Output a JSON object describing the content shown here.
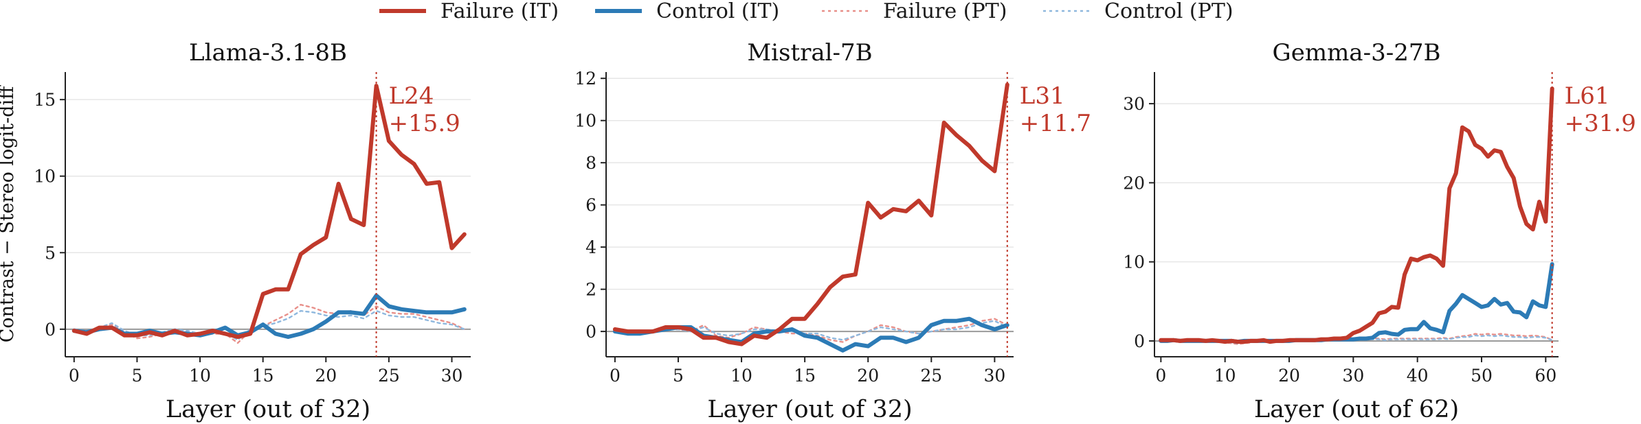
{
  "legend": {
    "items": [
      {
        "label": "Failure (IT)",
        "color": "#c0392b",
        "style": "solid"
      },
      {
        "label": "Control (IT)",
        "color": "#2c7bb6",
        "style": "solid"
      },
      {
        "label": "Failure (PT)",
        "color": "#e8908a",
        "style": "dotted"
      },
      {
        "label": "Control (PT)",
        "color": "#8fb8de",
        "style": "dotted"
      }
    ]
  },
  "colors": {
    "failure_it": "#c0392b",
    "control_it": "#2c7bb6",
    "failure_pt": "#e8908a",
    "control_pt": "#8fb8de",
    "grid": "#e6e6e6",
    "axis": "#222222"
  },
  "chart_data": [
    {
      "type": "line",
      "title": "Llama-3.1-8B",
      "xlabel": "Layer (out of 32)",
      "ylabel": "Contrast − Stereo logit-diff",
      "xlim": [
        -0.7,
        31.5
      ],
      "ylim": [
        -1.8,
        16.8
      ],
      "xticks": [
        0,
        5,
        10,
        15,
        20,
        25,
        30
      ],
      "yticks": [
        0,
        5,
        10,
        15
      ],
      "grid": "horizontal",
      "x": [
        0,
        1,
        2,
        3,
        4,
        5,
        6,
        7,
        8,
        9,
        10,
        11,
        12,
        13,
        14,
        15,
        16,
        17,
        18,
        19,
        20,
        21,
        22,
        23,
        24,
        25,
        26,
        27,
        28,
        29,
        30,
        31
      ],
      "series": [
        {
          "name": "Failure (IT)",
          "values": [
            -0.1,
            -0.3,
            0.1,
            0.1,
            -0.4,
            -0.4,
            -0.2,
            -0.4,
            -0.1,
            -0.4,
            -0.3,
            -0.1,
            -0.3,
            -0.5,
            -0.3,
            2.3,
            2.6,
            2.6,
            4.9,
            5.5,
            6.0,
            9.5,
            7.2,
            6.8,
            15.9,
            12.3,
            11.4,
            10.8,
            9.5,
            9.6,
            5.3,
            6.2
          ]
        },
        {
          "name": "Control (IT)",
          "values": [
            -0.1,
            -0.2,
            0.0,
            0.1,
            -0.3,
            -0.3,
            -0.1,
            -0.3,
            -0.2,
            -0.3,
            -0.4,
            -0.2,
            0.1,
            -0.4,
            -0.2,
            0.3,
            -0.3,
            -0.5,
            -0.3,
            0.0,
            0.5,
            1.1,
            1.1,
            1.0,
            2.2,
            1.5,
            1.3,
            1.2,
            1.1,
            1.1,
            1.1,
            1.3
          ]
        },
        {
          "name": "Failure (PT)",
          "values": [
            0.0,
            -0.2,
            0.1,
            0.3,
            -0.2,
            -0.6,
            -0.5,
            -0.3,
            -0.1,
            -0.2,
            -0.4,
            -0.3,
            -0.3,
            -0.9,
            -0.1,
            0.2,
            0.6,
            1.0,
            1.6,
            1.4,
            1.1,
            1.0,
            1.2,
            0.9,
            1.5,
            1.1,
            1.0,
            1.0,
            0.8,
            0.6,
            0.4,
            0.0
          ]
        },
        {
          "name": "Control (PT)",
          "values": [
            0.0,
            -0.1,
            0.1,
            0.4,
            -0.1,
            -0.4,
            -0.4,
            -0.2,
            0.0,
            -0.1,
            -0.3,
            -0.2,
            -0.2,
            -0.7,
            0.0,
            0.2,
            0.4,
            0.7,
            1.2,
            1.1,
            0.9,
            0.8,
            0.9,
            0.7,
            1.2,
            0.9,
            0.8,
            0.8,
            0.6,
            0.4,
            0.3,
            0.0
          ]
        }
      ],
      "peak": {
        "layer": 24,
        "label": "L24",
        "value_label": "+15.9"
      }
    },
    {
      "type": "line",
      "title": "Mistral-7B",
      "xlabel": "Layer (out of 32)",
      "ylabel": "",
      "xlim": [
        -0.7,
        31.5
      ],
      "ylim": [
        -1.2,
        12.3
      ],
      "xticks": [
        0,
        5,
        10,
        15,
        20,
        25,
        30
      ],
      "yticks": [
        0,
        2,
        4,
        6,
        8,
        10,
        12
      ],
      "grid": "horizontal",
      "x": [
        0,
        1,
        2,
        3,
        4,
        5,
        6,
        7,
        8,
        9,
        10,
        11,
        12,
        13,
        14,
        15,
        16,
        17,
        18,
        19,
        20,
        21,
        22,
        23,
        24,
        25,
        26,
        27,
        28,
        29,
        30,
        31
      ],
      "series": [
        {
          "name": "Failure (IT)",
          "values": [
            0.1,
            0.0,
            0.0,
            0.0,
            0.2,
            0.2,
            0.1,
            -0.3,
            -0.3,
            -0.5,
            -0.6,
            -0.2,
            -0.3,
            0.1,
            0.6,
            0.6,
            1.3,
            2.1,
            2.6,
            2.7,
            6.1,
            5.4,
            5.8,
            5.7,
            6.2,
            5.5,
            9.9,
            9.3,
            8.8,
            8.1,
            7.6,
            11.7
          ]
        },
        {
          "name": "Control (IT)",
          "values": [
            0.0,
            -0.1,
            -0.1,
            0.0,
            0.1,
            0.2,
            0.2,
            -0.2,
            -0.3,
            -0.4,
            -0.5,
            -0.1,
            0.0,
            0.0,
            0.1,
            -0.2,
            -0.3,
            -0.6,
            -0.9,
            -0.6,
            -0.7,
            -0.3,
            -0.3,
            -0.5,
            -0.3,
            0.3,
            0.5,
            0.5,
            0.6,
            0.3,
            0.1,
            0.3
          ]
        },
        {
          "name": "Failure (PT)",
          "values": [
            0.0,
            0.0,
            -0.1,
            0.0,
            0.1,
            0.1,
            0.0,
            0.3,
            -0.2,
            -0.3,
            -0.1,
            0.2,
            0.1,
            0.0,
            -0.1,
            -0.1,
            -0.2,
            -0.4,
            -0.5,
            -0.2,
            0.0,
            0.3,
            0.2,
            0.0,
            -0.1,
            0.0,
            0.1,
            0.2,
            0.3,
            0.5,
            0.6,
            0.3
          ]
        },
        {
          "name": "Control (PT)",
          "values": [
            0.0,
            0.0,
            0.0,
            0.0,
            0.1,
            0.1,
            0.0,
            0.2,
            -0.1,
            -0.2,
            -0.1,
            0.1,
            0.1,
            0.0,
            0.0,
            -0.1,
            -0.1,
            -0.3,
            -0.4,
            -0.2,
            0.0,
            0.2,
            0.1,
            0.0,
            -0.1,
            0.0,
            0.1,
            0.1,
            0.2,
            0.4,
            0.5,
            0.2
          ]
        }
      ],
      "peak": {
        "layer": 31,
        "label": "L31",
        "value_label": "+11.7"
      }
    },
    {
      "type": "line",
      "title": "Gemma-3-27B",
      "xlabel": "Layer (out of 62)",
      "ylabel": "",
      "xlim": [
        -1,
        62
      ],
      "ylim": [
        -2,
        34
      ],
      "xticks": [
        0,
        10,
        20,
        30,
        40,
        50,
        60
      ],
      "yticks": [
        0,
        10,
        20,
        30
      ],
      "grid": "horizontal",
      "x": [
        0,
        1,
        2,
        3,
        4,
        5,
        6,
        7,
        8,
        9,
        10,
        11,
        12,
        13,
        14,
        15,
        16,
        17,
        18,
        19,
        20,
        21,
        22,
        23,
        24,
        25,
        26,
        27,
        28,
        29,
        30,
        31,
        32,
        33,
        34,
        35,
        36,
        37,
        38,
        39,
        40,
        41,
        42,
        43,
        44,
        45,
        46,
        47,
        48,
        49,
        50,
        51,
        52,
        53,
        54,
        55,
        56,
        57,
        58,
        59,
        60,
        61
      ],
      "series": [
        {
          "name": "Failure (IT)",
          "values": [
            0.1,
            0.1,
            0.1,
            0.0,
            0.1,
            0.1,
            0.1,
            0.0,
            0.1,
            0.0,
            -0.1,
            0.0,
            -0.1,
            -0.1,
            0.0,
            0.0,
            0.1,
            -0.1,
            0.0,
            0.0,
            0.1,
            0.1,
            0.1,
            0.1,
            0.1,
            0.2,
            0.2,
            0.3,
            0.3,
            0.4,
            1.0,
            1.3,
            1.8,
            2.3,
            3.5,
            3.7,
            4.3,
            4.2,
            8.4,
            10.4,
            10.2,
            10.6,
            10.8,
            10.4,
            9.5,
            19.3,
            21.2,
            27.0,
            26.5,
            24.8,
            24.3,
            23.3,
            24.1,
            23.9,
            22.0,
            20.6,
            17.0,
            14.8,
            14.1,
            17.6,
            15.1,
            31.9
          ]
        },
        {
          "name": "Control (IT)",
          "values": [
            0.0,
            0.0,
            0.1,
            0.0,
            0.0,
            0.0,
            0.0,
            0.0,
            0.0,
            0.0,
            0.0,
            0.0,
            -0.1,
            0.0,
            0.0,
            0.0,
            0.0,
            0.0,
            0.0,
            0.0,
            0.0,
            0.1,
            0.1,
            0.1,
            0.1,
            0.1,
            0.2,
            0.2,
            0.2,
            0.2,
            0.2,
            0.3,
            0.3,
            0.4,
            1.0,
            1.1,
            0.9,
            0.8,
            1.4,
            1.5,
            1.5,
            2.4,
            1.6,
            1.4,
            1.1,
            3.8,
            4.7,
            5.8,
            5.3,
            4.8,
            4.3,
            4.5,
            5.3,
            4.6,
            4.8,
            3.7,
            3.6,
            3.0,
            5.0,
            4.5,
            4.3,
            9.7
          ]
        },
        {
          "name": "Failure (PT)",
          "values": [
            0.0,
            0.1,
            0.0,
            0.1,
            0.0,
            0.0,
            0.1,
            0.0,
            -0.1,
            0.0,
            -0.2,
            -0.3,
            -0.4,
            -0.3,
            -0.2,
            0.0,
            0.0,
            -0.1,
            0.0,
            0.0,
            0.1,
            0.1,
            0.0,
            0.1,
            0.1,
            0.2,
            0.2,
            0.1,
            0.2,
            0.3,
            0.3,
            0.3,
            0.4,
            0.3,
            0.3,
            0.2,
            0.3,
            0.3,
            0.3,
            0.3,
            0.3,
            0.3,
            0.3,
            0.3,
            0.4,
            0.3,
            0.5,
            0.6,
            0.7,
            0.9,
            0.8,
            0.9,
            0.8,
            0.9,
            0.8,
            0.7,
            0.7,
            0.6,
            0.7,
            0.6,
            0.5,
            0.1
          ]
        },
        {
          "name": "Control (PT)",
          "values": [
            0.0,
            0.0,
            0.0,
            0.0,
            0.0,
            0.0,
            0.0,
            0.0,
            -0.1,
            0.0,
            -0.1,
            -0.2,
            -0.3,
            -0.2,
            -0.1,
            0.0,
            0.0,
            0.0,
            0.0,
            0.0,
            0.0,
            0.0,
            0.0,
            0.0,
            0.0,
            0.1,
            0.1,
            0.1,
            0.1,
            0.2,
            0.2,
            0.2,
            0.2,
            0.2,
            0.2,
            0.1,
            0.2,
            0.2,
            0.2,
            0.2,
            0.2,
            0.2,
            0.2,
            0.2,
            0.3,
            0.2,
            0.4,
            0.5,
            0.5,
            0.7,
            0.6,
            0.7,
            0.6,
            0.7,
            0.6,
            0.5,
            0.5,
            0.4,
            0.5,
            0.5,
            0.4,
            0.1
          ]
        }
      ],
      "peak": {
        "layer": 61,
        "label": "L61",
        "value_label": "+31.9"
      }
    }
  ]
}
